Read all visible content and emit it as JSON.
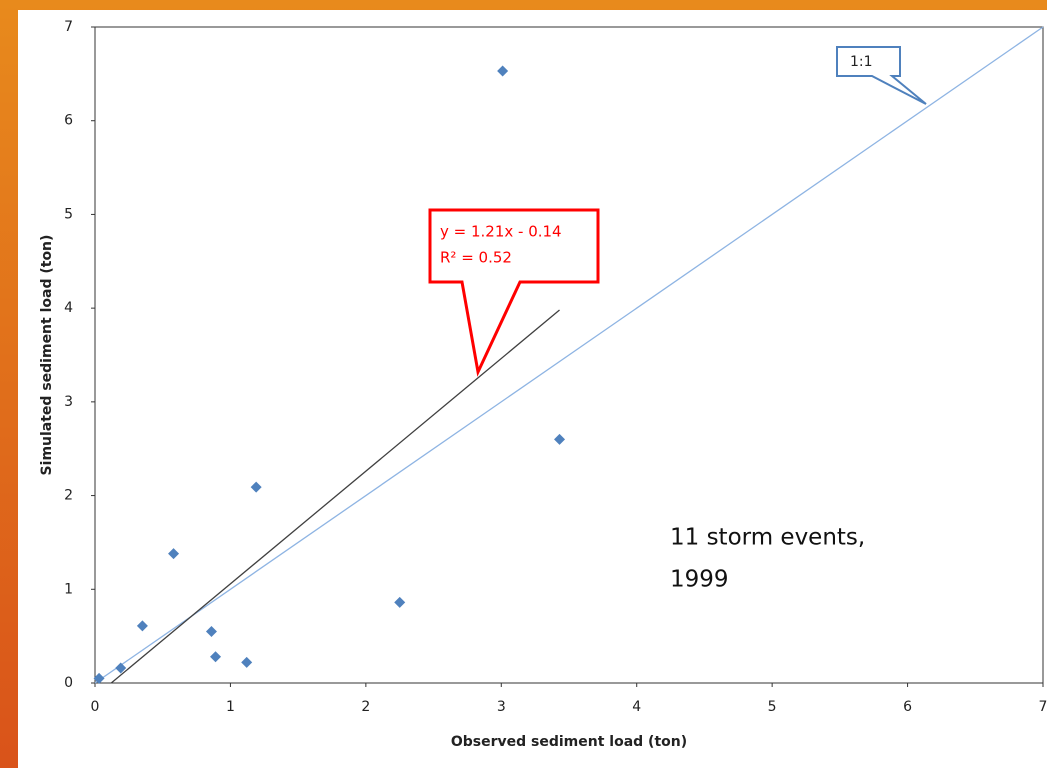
{
  "chart_data": {
    "type": "scatter",
    "x_label": "Observed sediment load (ton)",
    "y_label": "Simulated sediment load (ton)",
    "x": [
      0.03,
      0.19,
      0.35,
      0.58,
      0.86,
      0.89,
      1.12,
      1.19,
      2.25,
      3.01,
      3.43
    ],
    "values": [
      0.05,
      0.16,
      0.61,
      1.38,
      0.55,
      0.28,
      0.22,
      2.09,
      0.86,
      6.53,
      2.6
    ],
    "color": "#4f81bd",
    "xlim": [
      0,
      7
    ],
    "ylim": [
      0,
      7
    ],
    "xticks": [
      0,
      1,
      2,
      3,
      4,
      5,
      6,
      7
    ],
    "yticks": [
      0,
      1,
      2,
      3,
      4,
      5,
      6,
      7
    ],
    "trendline": {
      "equation": "y = 1.21x - 0.14",
      "r2": "R² = 0.52",
      "x": [
        0.12,
        3.43
      ],
      "y": [
        0.0,
        3.98
      ],
      "color": "#404040"
    },
    "reference_line": {
      "label": "1:1",
      "x": [
        0,
        7
      ],
      "y": [
        0,
        7
      ],
      "color": "#8eb4e3"
    },
    "annotation": [
      "11 storm events,",
      "1999"
    ]
  }
}
